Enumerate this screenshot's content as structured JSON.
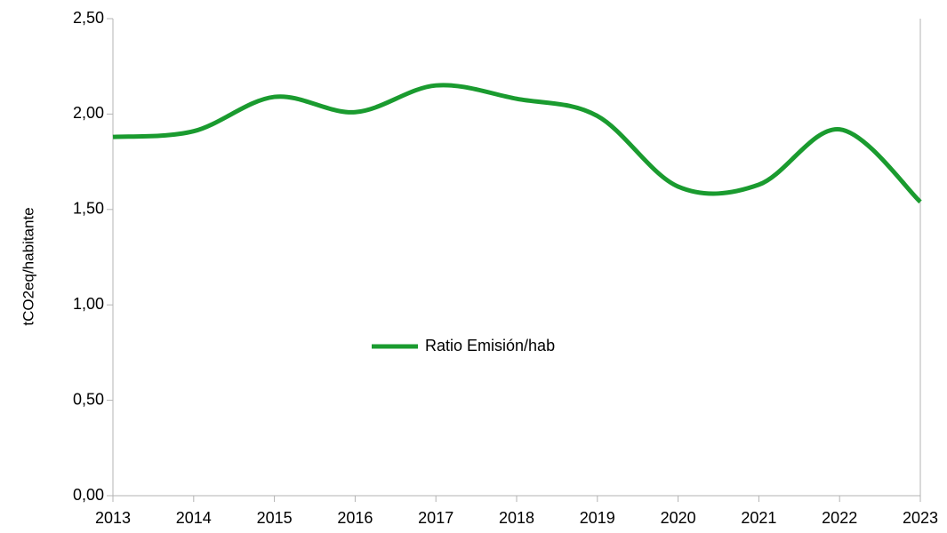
{
  "chart_data": {
    "type": "line",
    "y_label": "tCO2eq/habitante",
    "x": [
      2013,
      2014,
      2015,
      2016,
      2017,
      2018,
      2019,
      2020,
      2021,
      2022,
      2023
    ],
    "series": [
      {
        "name": "Ratio Emisión/hab",
        "color": "#1a9b2f",
        "values": [
          1.88,
          1.91,
          2.09,
          2.01,
          2.15,
          2.08,
          1.99,
          1.62,
          1.63,
          1.92,
          1.54
        ]
      }
    ],
    "xlim": [
      2013,
      2023
    ],
    "xticks": [
      2013,
      2014,
      2015,
      2016,
      2017,
      2018,
      2019,
      2020,
      2021,
      2022,
      2023
    ],
    "ylim": [
      0,
      2.5
    ],
    "yticks": [
      {
        "value": 0,
        "label": "0,00"
      },
      {
        "value": 0.5,
        "label": "0,50"
      },
      {
        "value": 1,
        "label": "1,00"
      },
      {
        "value": 1.5,
        "label": "1,50"
      },
      {
        "value": 2,
        "label": "2,00"
      },
      {
        "value": 2.5,
        "label": "2,50"
      }
    ],
    "smooth": true,
    "legend": "center"
  }
}
